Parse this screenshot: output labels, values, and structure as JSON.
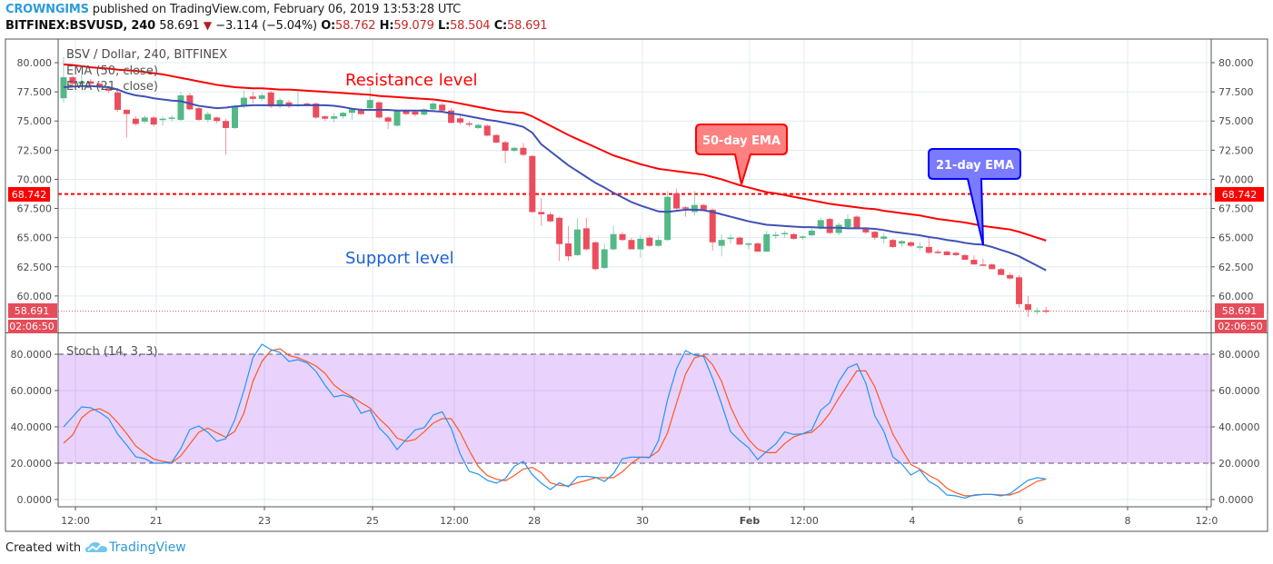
{
  "header": {
    "author": "CROWNGIMS",
    "published_text": "published on TradingView.com, February 06, 2019 13:53:28 UTC",
    "symbol_interval": "BITFINEX:BSVUSD, 240",
    "last": "58.691",
    "direction_icon": "triangle-down-icon",
    "change": "−3.114 (−5.04%)",
    "open_label": "O:",
    "open": "58.762",
    "high_label": "H:",
    "high": "59.079",
    "low_label": "L:",
    "low": "58.504",
    "close_label": "C:",
    "close": "58.691"
  },
  "legend": {
    "title": "BSV / Dollar, 240, BITFINEX",
    "ema50": "EMA (50, close)",
    "ema21": "EMA (21, close)",
    "stoch": "Stoch (14, 3, 3)"
  },
  "annotations": {
    "resistance": "Resistance level",
    "support": "Support level",
    "ema50_callout": "50-day EMA",
    "ema21_callout": "21-day EMA"
  },
  "price_axis": {
    "ticks": [
      "80.000",
      "77.500",
      "75.000",
      "72.500",
      "70.000",
      "67.500",
      "65.000",
      "62.500",
      "60.000"
    ]
  },
  "stoch_axis": {
    "ticks": [
      "80.0000",
      "60.0000",
      "40.0000",
      "20.0000",
      "0.0000"
    ]
  },
  "badges": {
    "level": "68.742",
    "last": "58.691",
    "countdown": "02:06:50"
  },
  "time_axis": {
    "labels": [
      "12:00",
      "21",
      "23",
      "25",
      "12:00",
      "28",
      "30",
      "Feb",
      "12:00",
      "4",
      "6",
      "8",
      "12:0"
    ]
  },
  "footer": {
    "created_with": "Created with",
    "brand": "TradingView",
    "logo_icon": "tradingview-cloud-icon"
  },
  "colors": {
    "up": "#53b987",
    "down": "#eb4d5c",
    "ema50": "#ff0000",
    "ema21": "#3f51b5",
    "stoch_k": "#2196f3",
    "stoch_d": "#ff5722",
    "stoch_band": "#e9d3fc",
    "level_line": "#ff0000",
    "support_text": "#1e5fd6",
    "callout50_fill": "#ff8080",
    "callout21_fill": "#7b7bff"
  },
  "chart_data": [
    {
      "type": "candlestick",
      "title": "BSV / Dollar, 240, BITFINEX",
      "interval": "240",
      "ylim": [
        56.875,
        81.95
      ],
      "grid": true,
      "horizontal_level": 68.742,
      "last_price": 58.691,
      "ohlc": [
        [
          76.95,
          80.5,
          76.6,
          78.75
        ],
        [
          78.75,
          78.9,
          78.0,
          78.2
        ],
        [
          78.2,
          79.0,
          77.9,
          78.4
        ],
        [
          78.4,
          78.6,
          78.0,
          78.2
        ],
        [
          78.2,
          78.3,
          77.8,
          77.9
        ],
        [
          77.8,
          78.0,
          77.4,
          77.6
        ],
        [
          77.45,
          77.6,
          75.8,
          75.96
        ],
        [
          75.96,
          76.0,
          73.6,
          75.6
        ],
        [
          75.2,
          75.4,
          74.6,
          74.75
        ],
        [
          74.95,
          75.5,
          74.8,
          75.3
        ],
        [
          75.3,
          75.4,
          74.5,
          74.7
        ],
        [
          75.1,
          75.4,
          74.6,
          75.2
        ],
        [
          75.2,
          75.5,
          75.0,
          75.3
        ],
        [
          75.1,
          77.5,
          75.0,
          77.2
        ],
        [
          77.2,
          77.4,
          75.9,
          76.0
        ],
        [
          76.1,
          76.2,
          75.0,
          75.1
        ],
        [
          75.1,
          75.8,
          74.9,
          75.6
        ],
        [
          75.3,
          75.4,
          74.8,
          75.0
        ],
        [
          75.0,
          75.2,
          72.1,
          74.4
        ],
        [
          74.4,
          76.4,
          74.3,
          76.3
        ],
        [
          76.3,
          77.6,
          76.1,
          77.0
        ],
        [
          77.1,
          77.5,
          76.5,
          76.9
        ],
        [
          76.9,
          77.4,
          76.7,
          77.2
        ],
        [
          77.45,
          77.6,
          76.1,
          76.25
        ],
        [
          76.25,
          77.0,
          76.1,
          76.8
        ],
        [
          76.6,
          76.8,
          76.1,
          76.25
        ],
        [
          76.3,
          77.5,
          76.2,
          76.4
        ],
        [
          76.5,
          76.6,
          76.3,
          76.4
        ],
        [
          76.5,
          76.6,
          75.2,
          75.3
        ],
        [
          75.4,
          75.5,
          75.0,
          75.2
        ],
        [
          75.2,
          75.7,
          74.9,
          75.4
        ],
        [
          75.4,
          75.8,
          75.2,
          75.7
        ],
        [
          75.7,
          76.1,
          75.1,
          76.0
        ],
        [
          76.0,
          76.1,
          75.5,
          75.6
        ],
        [
          76.1,
          77.9,
          75.9,
          76.8
        ],
        [
          76.6,
          76.7,
          75.2,
          75.3
        ],
        [
          75.3,
          75.4,
          74.3,
          74.95
        ],
        [
          74.6,
          76.0,
          74.5,
          75.9
        ],
        [
          75.85,
          76.0,
          75.5,
          75.6
        ],
        [
          75.8,
          75.9,
          75.4,
          75.55
        ],
        [
          75.55,
          76.1,
          75.4,
          76.0
        ],
        [
          76.0,
          76.7,
          75.9,
          76.5
        ],
        [
          76.4,
          76.6,
          75.8,
          75.9
        ],
        [
          75.9,
          76.1,
          74.8,
          74.84
        ],
        [
          75.23,
          75.6,
          74.7,
          74.87
        ],
        [
          74.8,
          75.0,
          74.5,
          74.7
        ],
        [
          74.4,
          74.8,
          74.3,
          74.67
        ],
        [
          74.6,
          74.7,
          73.7,
          73.75
        ],
        [
          73.8,
          73.9,
          73.1,
          73.15
        ],
        [
          73.18,
          73.3,
          71.4,
          72.45
        ],
        [
          72.45,
          72.8,
          72.3,
          72.7
        ],
        [
          72.7,
          73.1,
          72.0,
          72.1
        ],
        [
          72.0,
          72.1,
          67.1,
          67.2
        ],
        [
          67.2,
          68.4,
          66.0,
          67.0
        ],
        [
          67.0,
          67.2,
          66.3,
          66.4
        ],
        [
          66.7,
          66.8,
          63.0,
          64.45
        ],
        [
          64.5,
          66.0,
          63.0,
          63.4
        ],
        [
          63.5,
          66.7,
          63.4,
          65.7
        ],
        [
          65.8,
          66.7,
          63.9,
          64.0
        ],
        [
          64.6,
          64.7,
          62.2,
          62.3
        ],
        [
          62.4,
          64.5,
          62.3,
          64.0
        ],
        [
          64.0,
          66.0,
          63.9,
          65.3
        ],
        [
          65.3,
          65.5,
          64.7,
          64.8
        ],
        [
          64.8,
          65.0,
          64.0,
          64.0
        ],
        [
          64.0,
          65.2,
          63.3,
          64.9
        ],
        [
          65.0,
          65.2,
          64.2,
          64.3
        ],
        [
          64.3,
          65.2,
          64.2,
          64.8
        ],
        [
          64.8,
          69.0,
          64.7,
          68.5
        ],
        [
          68.8,
          69.2,
          67.4,
          67.5
        ],
        [
          67.6,
          67.7,
          66.8,
          67.5
        ],
        [
          67.2,
          69.0,
          66.9,
          67.8
        ],
        [
          67.8,
          67.9,
          67.4,
          67.4
        ],
        [
          67.4,
          67.5,
          63.9,
          64.6
        ],
        [
          64.3,
          65.3,
          63.4,
          64.8
        ],
        [
          64.9,
          65.3,
          64.5,
          65.0
        ],
        [
          65.0,
          65.1,
          64.4,
          64.4
        ],
        [
          64.4,
          64.6,
          64.0,
          64.5
        ],
        [
          64.5,
          64.6,
          63.8,
          63.8
        ],
        [
          63.8,
          65.6,
          63.8,
          65.3
        ],
        [
          65.2,
          65.5,
          64.9,
          65.25
        ],
        [
          65.3,
          65.6,
          65.0,
          65.4
        ],
        [
          65.3,
          65.4,
          64.8,
          64.9
        ],
        [
          65.0,
          65.2,
          64.8,
          65.1
        ],
        [
          65.2,
          65.9,
          65.1,
          65.6
        ],
        [
          65.8,
          66.7,
          65.7,
          66.5
        ],
        [
          66.6,
          66.7,
          65.3,
          65.4
        ],
        [
          65.4,
          66.3,
          65.2,
          66.1
        ],
        [
          65.9,
          67.0,
          65.8,
          66.6
        ],
        [
          66.8,
          66.9,
          65.8,
          65.8
        ],
        [
          65.8,
          65.9,
          65.3,
          65.45
        ],
        [
          65.5,
          65.6,
          64.8,
          65.0
        ],
        [
          64.9,
          65.4,
          64.5,
          65.1
        ],
        [
          64.8,
          64.9,
          64.1,
          64.2
        ],
        [
          64.5,
          64.8,
          64.2,
          64.7
        ],
        [
          64.6,
          64.7,
          64.2,
          64.3
        ],
        [
          64.2,
          64.6,
          63.9,
          64.25
        ],
        [
          64.2,
          65.0,
          63.6,
          63.7
        ],
        [
          63.8,
          64.0,
          63.6,
          63.7
        ],
        [
          63.8,
          63.9,
          63.5,
          63.5
        ],
        [
          63.7,
          63.8,
          63.4,
          63.5
        ],
        [
          63.5,
          63.6,
          63.1,
          63.1
        ],
        [
          63.1,
          63.5,
          62.7,
          62.7
        ],
        [
          62.7,
          63.2,
          62.6,
          62.65
        ],
        [
          62.7,
          62.8,
          62.3,
          62.3
        ],
        [
          62.3,
          62.4,
          61.8,
          61.8
        ],
        [
          61.8,
          62.0,
          61.4,
          61.5
        ],
        [
          61.6,
          61.8,
          59.0,
          59.3
        ],
        [
          59.3,
          60.0,
          58.2,
          58.8
        ],
        [
          58.7,
          59.0,
          58.4,
          58.75
        ],
        [
          58.762,
          59.079,
          58.504,
          58.691
        ]
      ],
      "ema50": [
        79.85,
        79.8,
        79.7,
        79.6,
        79.55,
        79.5,
        79.4,
        79.35,
        79.3,
        79.2,
        79.1,
        79.0,
        78.85,
        78.7,
        78.55,
        78.4,
        78.25,
        78.1,
        78.0,
        77.9,
        77.85,
        77.8,
        77.8,
        77.75,
        77.7,
        77.7,
        77.65,
        77.6,
        77.55,
        77.5,
        77.45,
        77.4,
        77.35,
        77.3,
        77.25,
        77.15,
        77.1,
        77.05,
        77.0,
        76.95,
        76.9,
        76.85,
        76.75,
        76.65,
        76.5,
        76.35,
        76.2,
        76.05,
        75.9,
        75.8,
        75.75,
        75.7,
        75.4,
        75.0,
        74.6,
        74.2,
        73.8,
        73.45,
        73.1,
        72.75,
        72.4,
        72.05,
        71.8,
        71.55,
        71.3,
        71.1,
        70.9,
        70.8,
        70.7,
        70.6,
        70.5,
        70.4,
        70.2,
        70.0,
        69.75,
        69.5,
        69.3,
        69.1,
        68.9,
        68.8,
        68.65,
        68.5,
        68.35,
        68.2,
        68.05,
        67.9,
        67.8,
        67.7,
        67.6,
        67.5,
        67.45,
        67.3,
        67.2,
        67.1,
        67.0,
        66.9,
        66.75,
        66.6,
        66.5,
        66.4,
        66.3,
        66.15,
        66.0,
        65.9,
        65.8,
        65.7,
        65.5,
        65.25,
        65.0,
        64.75
      ],
      "ema21": [
        77.9,
        77.95,
        78.0,
        78.0,
        77.95,
        77.9,
        77.7,
        77.4,
        77.2,
        77.1,
        76.95,
        76.85,
        76.75,
        76.7,
        76.5,
        76.3,
        76.2,
        76.1,
        76.15,
        76.25,
        76.3,
        76.35,
        76.35,
        76.35,
        76.35,
        76.35,
        76.35,
        76.35,
        76.35,
        76.35,
        76.3,
        76.2,
        76.05,
        75.96,
        75.95,
        75.95,
        75.95,
        75.9,
        75.9,
        75.9,
        75.9,
        75.85,
        75.8,
        75.65,
        75.55,
        75.4,
        75.25,
        75.1,
        75.0,
        74.85,
        74.7,
        74.5,
        74.0,
        73.0,
        72.4,
        71.8,
        71.2,
        70.7,
        70.2,
        69.7,
        69.3,
        68.85,
        68.45,
        68.05,
        67.75,
        67.5,
        67.25,
        67.2,
        67.3,
        67.4,
        67.4,
        67.35,
        67.2,
        67.0,
        66.8,
        66.6,
        66.4,
        66.25,
        66.1,
        66.05,
        66.0,
        65.95,
        65.9,
        65.9,
        65.85,
        65.85,
        65.85,
        65.8,
        65.8,
        65.8,
        65.75,
        65.65,
        65.5,
        65.4,
        65.3,
        65.2,
        65.05,
        64.95,
        64.8,
        64.7,
        64.55,
        64.45,
        64.4,
        64.2,
        63.95,
        63.7,
        63.4,
        63.0,
        62.6,
        62.2
      ]
    },
    {
      "type": "line",
      "title": "Stoch (14, 3, 3)",
      "ylim": [
        -4,
        91.5
      ],
      "levels": [
        20,
        80
      ],
      "k": [
        40,
        45.5,
        51,
        50.5,
        48,
        44.5,
        36,
        30,
        23.5,
        22.5,
        20,
        20,
        20.5,
        28,
        38.5,
        40.5,
        37,
        32,
        33.5,
        44,
        60,
        78,
        85.5,
        82.5,
        81,
        76,
        77,
        75.3,
        70.5,
        63,
        56.5,
        57.5,
        56,
        47.5,
        49.2,
        39.5,
        34.5,
        27.5,
        33,
        38.3,
        39.5,
        46.5,
        48.3,
        39.2,
        25,
        15.5,
        14,
        10.6,
        9,
        11.5,
        18.3,
        21,
        13.7,
        9,
        5.5,
        9.2,
        7,
        12.5,
        12.8,
        12.2,
        10,
        14.2,
        22.5,
        23.3,
        23.3,
        23,
        32.5,
        55,
        72,
        82,
        79.5,
        78.8,
        66.7,
        52.5,
        37.3,
        32.5,
        28.5,
        22,
        26.5,
        30.5,
        37.2,
        35.8,
        36.2,
        38.3,
        49.2,
        53.3,
        65,
        72.5,
        74.7,
        64,
        46,
        37.5,
        23.5,
        19.5,
        13.5,
        16.3,
        10,
        7.2,
        2.5,
        2,
        0.8,
        2.5,
        2.8,
        2.8,
        2,
        3.2,
        7,
        10.6,
        12,
        11.3
      ],
      "d": [
        31,
        35.5,
        45,
        49,
        50,
        47.5,
        42.3,
        36.3,
        29.5,
        25.7,
        22.3,
        21,
        20.2,
        24,
        30.5,
        37,
        39.3,
        36.7,
        34.3,
        37.5,
        47.5,
        65,
        76,
        82,
        83,
        79.3,
        78,
        76,
        73.5,
        69.5,
        63,
        59.3,
        56.5,
        53.3,
        50.3,
        44.5,
        40,
        33.8,
        32,
        33,
        37.3,
        42,
        44.5,
        44.5,
        37,
        27,
        18.2,
        13.2,
        11.2,
        10.3,
        13.2,
        16.8,
        17.7,
        14.7,
        9.2,
        7.8,
        7.5,
        9.2,
        10.5,
        12,
        12,
        12,
        15.3,
        20,
        23.3,
        23.3,
        26.7,
        36.7,
        53,
        69,
        78,
        79.5,
        74.2,
        65,
        51,
        40.5,
        33,
        27.8,
        25.8,
        25.8,
        30.8,
        34.5,
        36.2,
        37,
        41.2,
        47.5,
        55.8,
        63.3,
        70.8,
        70.8,
        62,
        48.8,
        36,
        27.5,
        19.3,
        16.7,
        13.3,
        10.8,
        6.2,
        3.7,
        2,
        2.2,
        2.8,
        2.8,
        2.5,
        2.5,
        4.2,
        7.2,
        10,
        11.3
      ]
    }
  ]
}
